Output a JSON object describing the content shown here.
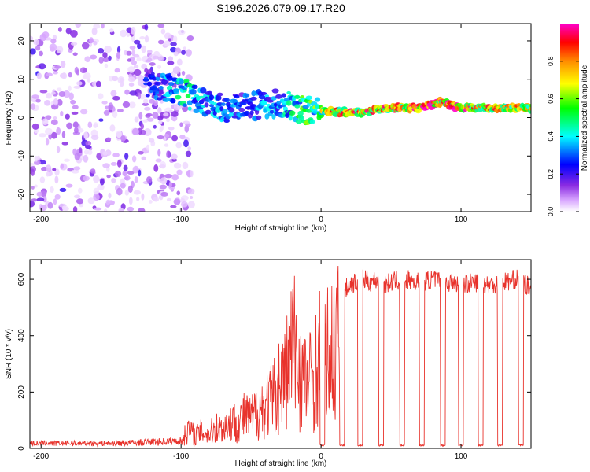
{
  "title": "S196.2026.079.09.17.R20",
  "colors": {
    "snr_line": "#e8332c",
    "axis": "#000000"
  },
  "chart_data": [
    {
      "type": "heatmap",
      "title": "S196.2026.079.09.17.R20",
      "xlabel": "Height of straight line (km)",
      "ylabel": "Frequency (Hz)",
      "xlim": [
        -208,
        150
      ],
      "ylim": [
        -24.5,
        24.5
      ],
      "xticks": [
        -200,
        -100,
        0,
        100
      ],
      "xtick_labels": [
        "-200",
        "-100",
        "0",
        "100"
      ],
      "yticks": [
        -20,
        -10,
        0,
        10,
        20
      ],
      "ytick_labels": [
        "-20",
        "-10",
        "0",
        "10",
        "20"
      ],
      "colorbar": {
        "label": "Normalized spectral amplitude",
        "range": [
          0,
          1
        ],
        "ticks": [
          0.0,
          0.2,
          0.4,
          0.6,
          0.8
        ],
        "tick_labels": [
          "0.0",
          "0.2",
          "0.4",
          "0.6",
          "0.8"
        ],
        "colormap": [
          "#ffffff",
          "#8a2be2",
          "#0000ff",
          "#00ffff",
          "#00ff00",
          "#ffff00",
          "#ff8c00",
          "#ff0000",
          "#ff00cc"
        ]
      },
      "ridge": {
        "description_free": true,
        "x": [
          -125,
          -115,
          -100,
          -85,
          -70,
          -55,
          -40,
          -25,
          -15,
          -5,
          10,
          30,
          50,
          70,
          85,
          100,
          120,
          150
        ],
        "freq": [
          9,
          8,
          7,
          4,
          2.5,
          3,
          3.5,
          4,
          2,
          2,
          1.5,
          1.5,
          2.5,
          2.5,
          4,
          2.5,
          2.5,
          2.5
        ],
        "amplitude": [
          0.25,
          0.3,
          0.45,
          0.4,
          0.35,
          0.3,
          0.35,
          0.4,
          0.5,
          0.55,
          0.8,
          0.85,
          0.8,
          0.9,
          0.85,
          0.85,
          0.8,
          0.75
        ]
      },
      "noise_region": {
        "x_range": [
          -208,
          -100
        ],
        "freq_range": [
          -24.5,
          24.5
        ],
        "amplitude": 0.15
      }
    },
    {
      "type": "line",
      "xlabel": "Height of straight line (km)",
      "ylabel": "SNR (10 * v/v)",
      "xlim": [
        -208,
        150
      ],
      "ylim": [
        0,
        670
      ],
      "xticks": [
        -200,
        -100,
        0,
        100
      ],
      "xtick_labels": [
        "-200",
        "-100",
        "0",
        "100"
      ],
      "yticks": [
        0,
        200,
        400,
        600
      ],
      "ytick_labels": [
        "0",
        "200",
        "400",
        "600"
      ],
      "series": [
        {
          "name": "SNR",
          "x": [
            -208,
            -180,
            -150,
            -120,
            -100,
            -95,
            -90,
            -85,
            -80,
            -75,
            -70,
            -65,
            -60,
            -55,
            -50,
            -45,
            -40,
            -35,
            -30,
            -25,
            -20,
            -15,
            -10,
            -5,
            0,
            5,
            10,
            15,
            20,
            25,
            30,
            35,
            40,
            45,
            50,
            60,
            70,
            80,
            90,
            100,
            110,
            120,
            130,
            140,
            150
          ],
          "y": [
            20,
            20,
            20,
            25,
            30,
            90,
            60,
            80,
            70,
            100,
            90,
            130,
            120,
            150,
            140,
            180,
            200,
            230,
            300,
            350,
            500,
            380,
            300,
            350,
            450,
            430,
            500,
            550,
            580,
            590,
            600,
            590,
            600,
            580,
            590,
            600,
            590,
            600,
            590,
            580,
            590,
            580,
            590,
            600,
            570
          ],
          "dropouts_x": [
            1,
            15,
            28,
            43,
            58,
            72,
            87,
            100,
            114,
            128,
            143
          ],
          "dropout_value": 8
        }
      ]
    }
  ]
}
